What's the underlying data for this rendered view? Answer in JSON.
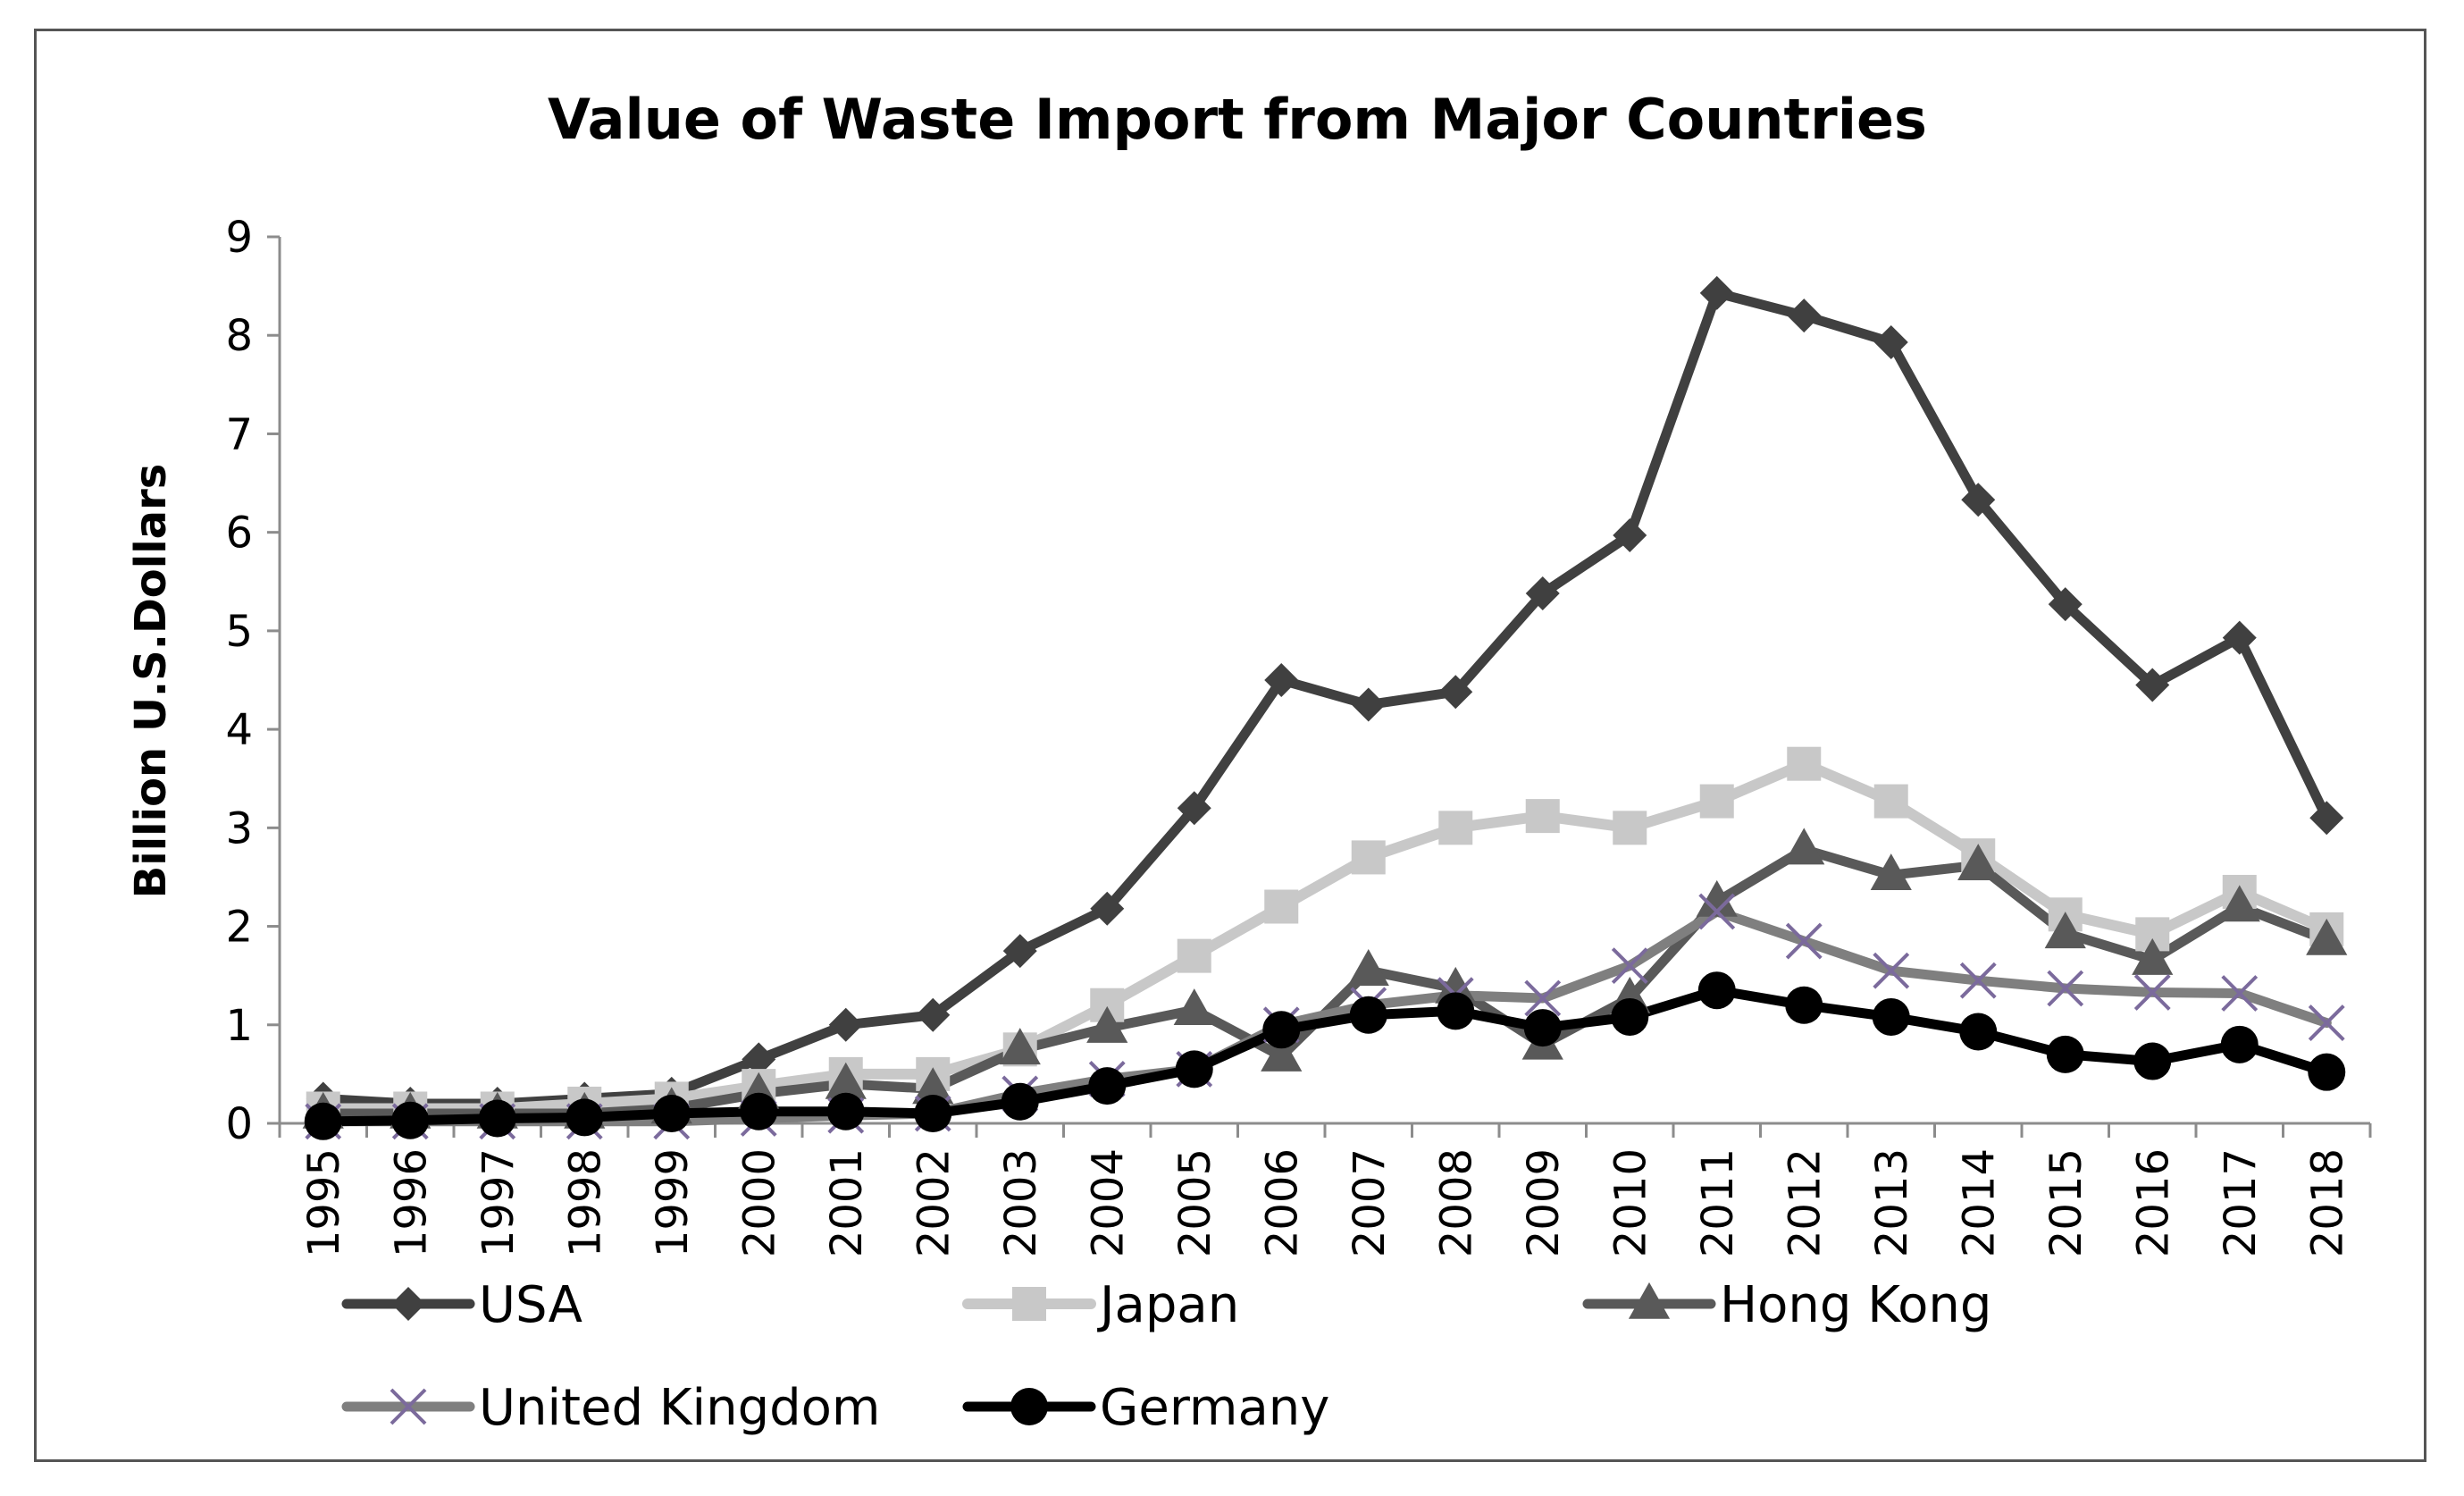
{
  "chart_data": {
    "type": "line",
    "title": "Value of Waste Import from Major Countries",
    "xlabel": "",
    "ylabel": "Billion U.S.Dollars",
    "ylim": [
      0,
      9
    ],
    "yticks": [
      "0",
      "1",
      "2",
      "3",
      "4",
      "5",
      "6",
      "7",
      "8",
      "9"
    ],
    "categories": [
      "1995",
      "1996",
      "1997",
      "1998",
      "1999",
      "2000",
      "2001",
      "2002",
      "2003",
      "2004",
      "2005",
      "2006",
      "2007",
      "2008",
      "2009",
      "2010",
      "2011",
      "2012",
      "2013",
      "2014",
      "2015",
      "2016",
      "2017",
      "2018"
    ],
    "legend_position": "bottom",
    "series": [
      {
        "name": "USA",
        "marker": "diamond",
        "color": "#404040",
        "values": [
          0.25,
          0.2,
          0.2,
          0.25,
          0.3,
          0.65,
          1.0,
          1.1,
          1.75,
          2.18,
          3.2,
          4.5,
          4.25,
          4.38,
          5.38,
          5.97,
          8.43,
          8.2,
          7.93,
          6.33,
          5.27,
          4.45,
          4.93,
          3.1
        ]
      },
      {
        "name": "Japan",
        "marker": "square",
        "color": "#c8c8c8",
        "values": [
          0.15,
          0.15,
          0.15,
          0.2,
          0.25,
          0.38,
          0.5,
          0.5,
          0.75,
          1.2,
          1.7,
          2.2,
          2.7,
          3.0,
          3.12,
          3.0,
          3.27,
          3.65,
          3.27,
          2.72,
          2.12,
          1.92,
          2.35,
          1.97
        ]
      },
      {
        "name": "Hong Kong",
        "marker": "triangle",
        "color": "#595959",
        "values": [
          0.1,
          0.1,
          0.1,
          0.1,
          0.15,
          0.3,
          0.4,
          0.35,
          0.75,
          0.97,
          1.15,
          0.68,
          1.55,
          1.37,
          0.8,
          1.27,
          2.25,
          2.78,
          2.52,
          2.62,
          1.93,
          1.66,
          2.2,
          1.86
        ]
      },
      {
        "name": "United Kingdom",
        "marker": "x",
        "color": "#7f7f7f",
        "marker_color": "#7b6a9c",
        "values": [
          0.02,
          0.02,
          0.02,
          0.02,
          0.02,
          0.05,
          0.08,
          0.1,
          0.3,
          0.45,
          0.55,
          1.0,
          1.2,
          1.3,
          1.27,
          1.6,
          2.15,
          1.85,
          1.55,
          1.45,
          1.37,
          1.33,
          1.32,
          1.02
        ]
      },
      {
        "name": "Germany",
        "marker": "circle",
        "color": "#000000",
        "values": [
          0.02,
          0.03,
          0.05,
          0.06,
          0.1,
          0.12,
          0.12,
          0.1,
          0.22,
          0.38,
          0.55,
          0.95,
          1.1,
          1.14,
          0.97,
          1.08,
          1.35,
          1.2,
          1.08,
          0.93,
          0.7,
          0.63,
          0.8,
          0.52
        ]
      }
    ]
  }
}
